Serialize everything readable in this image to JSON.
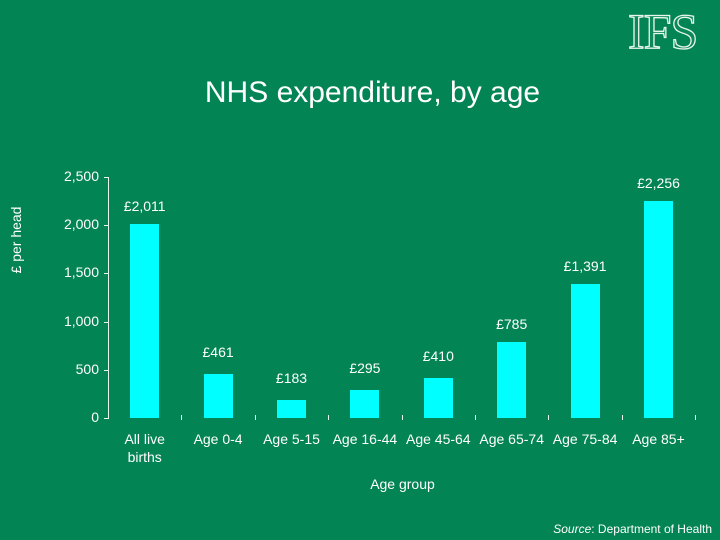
{
  "logo": "IFS",
  "title": "NHS expenditure, by age",
  "source": {
    "prefix": "Source",
    "text": ": Department of Health"
  },
  "chart_data": {
    "type": "bar",
    "title": "NHS expenditure, by age",
    "xlabel": "Age group",
    "ylabel": "£ per head",
    "ylim": [
      0,
      2500
    ],
    "yticks": [
      "0",
      "500",
      "1,000",
      "1,500",
      "2,000",
      "2,500"
    ],
    "grid": false,
    "legend": null,
    "categories": [
      "All live births",
      "Age 0-4",
      "Age 5-15",
      "Age 16-44",
      "Age 45-64",
      "Age 65-74",
      "Age 75-84",
      "Age 85+"
    ],
    "values": [
      2011,
      461,
      183,
      295,
      410,
      785,
      1391,
      2256
    ],
    "data_labels": [
      "£2,011",
      "£461",
      "£183",
      "£295",
      "£410",
      "£785",
      "£1,391",
      "£2,256"
    ],
    "bar_color": "#00ffff",
    "background": "#038454"
  },
  "xlabels": [
    [
      "All live",
      "births"
    ],
    [
      "Age 0-4"
    ],
    [
      "Age 5-15"
    ],
    [
      "Age 16-44"
    ],
    [
      "Age 45-64"
    ],
    [
      "Age 65-74"
    ],
    [
      "Age 75-84"
    ],
    [
      "Age 85+"
    ]
  ]
}
